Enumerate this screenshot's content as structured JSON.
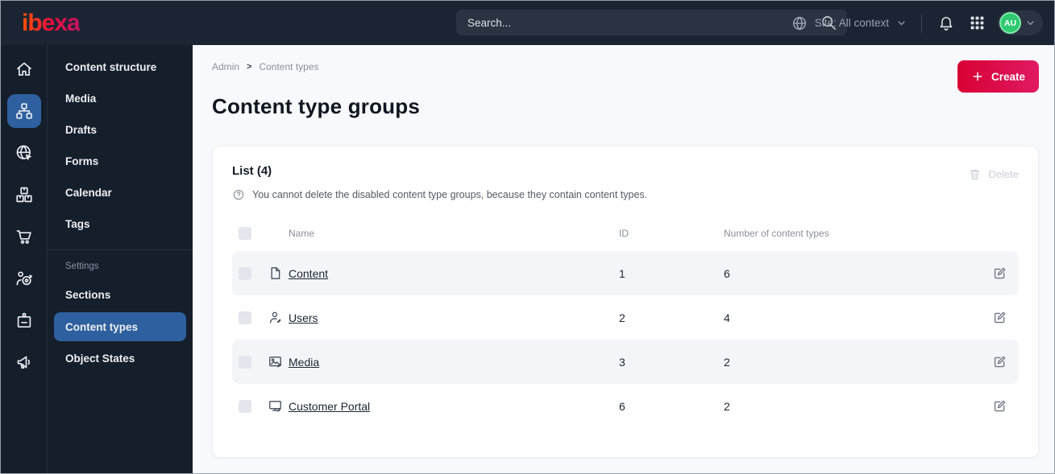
{
  "topbar": {
    "logo": "ibexa",
    "search_placeholder": "Search...",
    "site_context": "Site: All context",
    "avatar_initials": "AU"
  },
  "sidebar": {
    "rail": [
      {
        "icon": "home",
        "active": false
      },
      {
        "icon": "content-structure",
        "active": true
      },
      {
        "icon": "site",
        "active": false
      },
      {
        "icon": "products",
        "active": false
      },
      {
        "icon": "commerce-cart",
        "active": false
      },
      {
        "icon": "personalization",
        "active": false
      },
      {
        "icon": "admin-badge",
        "active": false
      },
      {
        "icon": "marketing-megaphone",
        "active": false
      }
    ],
    "menu": [
      {
        "label": "Content structure",
        "active": false
      },
      {
        "label": "Media",
        "active": false
      },
      {
        "label": "Drafts",
        "active": false
      },
      {
        "label": "Forms",
        "active": false
      },
      {
        "label": "Calendar",
        "active": false
      },
      {
        "label": "Tags",
        "active": false
      }
    ],
    "settings_label": "Settings",
    "settings_menu": [
      {
        "label": "Sections",
        "active": false
      },
      {
        "label": "Content types",
        "active": true
      },
      {
        "label": "Object States",
        "active": false
      }
    ]
  },
  "main": {
    "breadcrumb": [
      "Admin",
      "Content types"
    ],
    "create_label": "Create",
    "page_title": "Content type groups",
    "card": {
      "list_title": "List (4)",
      "help_text": "You cannot delete the disabled content type groups, because they contain content types.",
      "delete_label": "Delete",
      "table": {
        "headers": {
          "name": "Name",
          "id": "ID",
          "count": "Number of content types"
        },
        "rows": [
          {
            "icon": "file",
            "name": "Content",
            "id": "1",
            "count": "6"
          },
          {
            "icon": "user",
            "name": "Users",
            "id": "2",
            "count": "4"
          },
          {
            "icon": "image",
            "name": "Media",
            "id": "3",
            "count": "2"
          },
          {
            "icon": "monitor",
            "name": "Customer Portal",
            "id": "6",
            "count": "2"
          }
        ]
      }
    }
  },
  "colors": {
    "topbar_bg": "#1b2432",
    "sidebar_bg": "#151e2b",
    "active_blue": "#2e609f",
    "primary_gradient_start": "#d80134",
    "primary_gradient_end": "#e01a62",
    "avatar_green": "#2fc96f",
    "stripe_row": "#f4f5f8"
  }
}
